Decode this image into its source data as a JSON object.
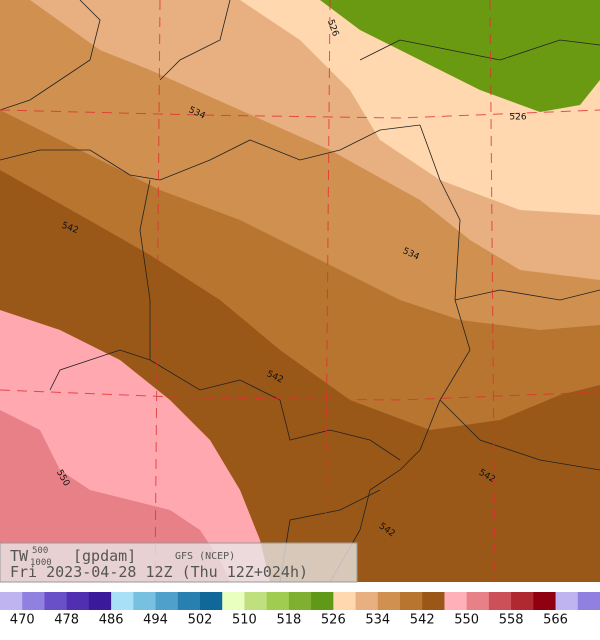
{
  "header": {
    "variable": "TW",
    "superscript": "500",
    "subscript": "1000",
    "unit": "[gpdam]",
    "model": "GFS (NCEP)",
    "valid": "Fri 2023-04-28 12Z (Thu 12Z+024h)"
  },
  "contour_labels": [
    526,
    526,
    534,
    534,
    542,
    542,
    542,
    542,
    550
  ],
  "colorbar": {
    "colors": [
      "#c0b4f0",
      "#9080e0",
      "#6a50c8",
      "#5030b0",
      "#3a1a9a",
      "#a8e0f8",
      "#78c0e0",
      "#50a0cc",
      "#2880b0",
      "#10689a",
      "#e8ffc0",
      "#c0e080",
      "#a0cc50",
      "#80b030",
      "#609818",
      "#ffd8b0",
      "#e8b080",
      "#d09050",
      "#b87530",
      "#9a5818",
      "#ffb0b8",
      "#e88088",
      "#cc5058",
      "#b02830",
      "#900010",
      "#c0b4f0",
      "#9080e0"
    ],
    "labels": [
      470,
      478,
      486,
      494,
      502,
      510,
      518,
      526,
      534,
      542,
      550,
      558,
      566
    ]
  }
}
